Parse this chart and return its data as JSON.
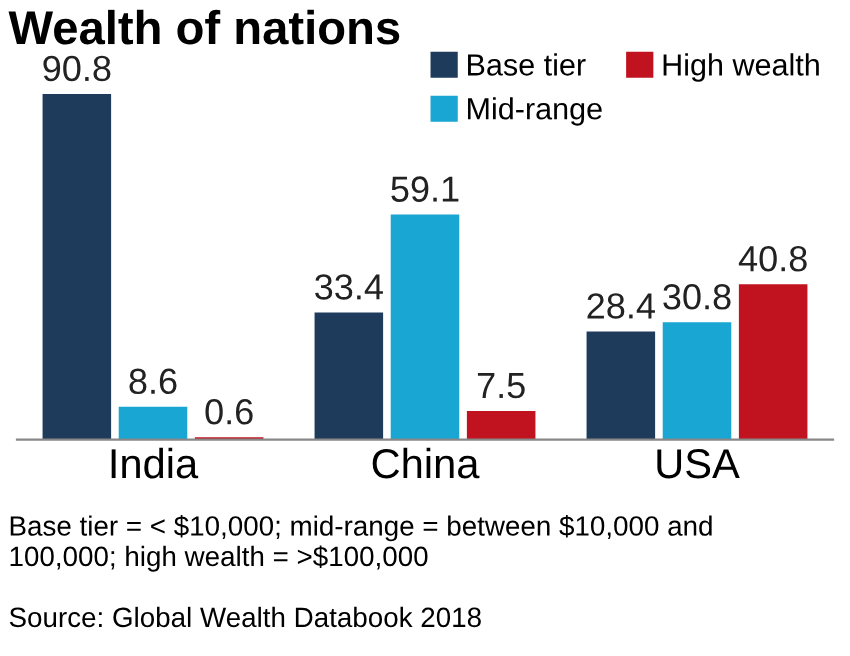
{
  "chart_data": {
    "type": "bar",
    "title": "Wealth of nations",
    "categories": [
      "India",
      "China",
      "USA"
    ],
    "series": [
      {
        "name": "Base tier",
        "color": "#1f3b5c",
        "values": [
          90.8,
          33.4,
          28.4
        ]
      },
      {
        "name": "Mid-range",
        "color": "#19a6d2",
        "values": [
          8.6,
          59.1,
          30.8
        ]
      },
      {
        "name": "High wealth",
        "color": "#c1121f",
        "values": [
          0.6,
          7.5,
          40.8
        ]
      }
    ],
    "data_labels": true,
    "legend": "top right",
    "grid": false,
    "annotations": [
      "Base tier = < $10,000; mid-range = between $10,000 and 100,000; high wealth = >$100,000",
      "Source: Global Wealth Databook 2018"
    ]
  }
}
